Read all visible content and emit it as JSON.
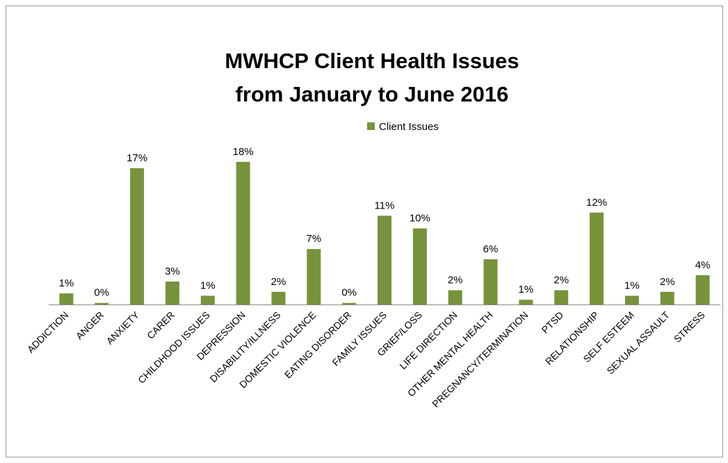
{
  "chart_data": {
    "type": "bar",
    "title": [
      "MWHCP Client Health Issues",
      "from January to June 2016"
    ],
    "categories": [
      "ADDICTION",
      "ANGER",
      "ANXIETY",
      "CARER",
      "CHILDHOOD ISSUES",
      "DEPRESSION",
      "DISABILITY/ILLNESS",
      "DOMESTIC VIOLENCE",
      "EATING DISORDER",
      "FAMILY ISSUES",
      "GRIEF/LOSS",
      "LIFE DIRECTION",
      "OTHER MENTAL  HEALTH",
      "PREGNANCY/TERMINATION",
      "PTSD",
      "RELATIONSHIP",
      "SELF ESTEEM",
      "SEXUAL ASSAULT",
      "STRESS"
    ],
    "series": [
      {
        "name": "Client Issues",
        "color": "#77933c",
        "values": [
          1.4,
          0.2,
          17.2,
          2.9,
          1.1,
          18,
          1.6,
          7.0,
          0.2,
          11.2,
          9.6,
          1.8,
          5.7,
          0.6,
          1.8,
          11.6,
          1.1,
          1.6,
          3.7
        ],
        "value_labels": [
          "1%",
          "0%",
          "17%",
          "3%",
          "1%",
          "18%",
          "2%",
          "7%",
          "0%",
          "11%",
          "10%",
          "2%",
          "6%",
          "1%",
          "2%",
          "12%",
          "1%",
          "2%",
          "4%"
        ]
      }
    ],
    "ylim": [
      0,
      20
    ]
  }
}
